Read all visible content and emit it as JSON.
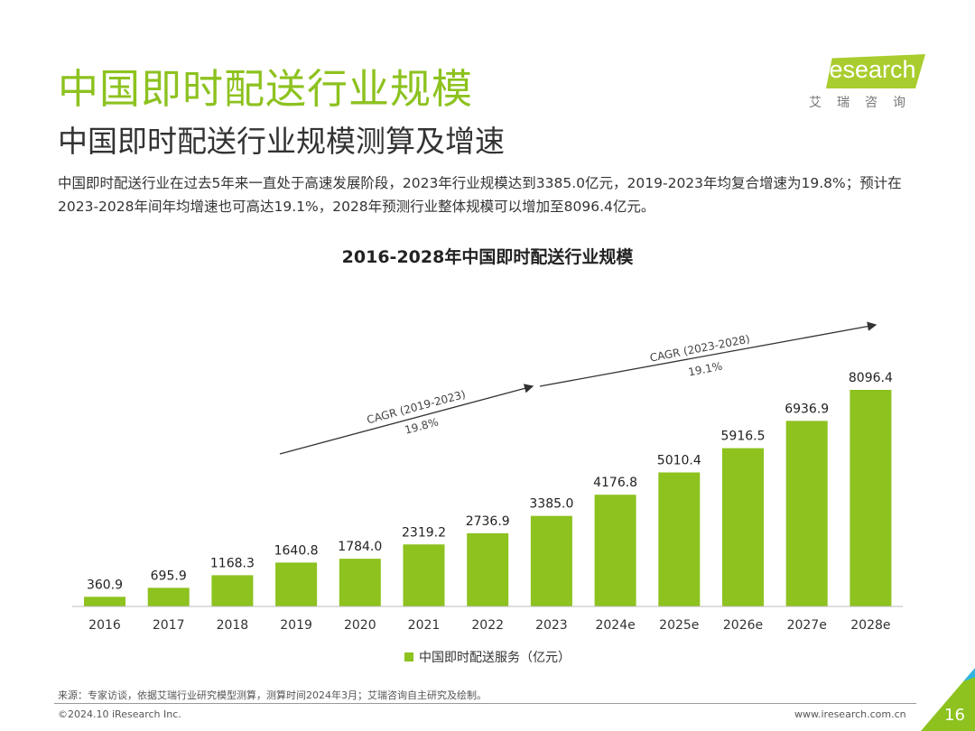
{
  "header": {
    "title": "中国即时配送行业规模",
    "subtitle": "中国即时配送行业规模测算及增速",
    "description": "中国即时配送行业在过去5年来一直处于高速发展阶段，2023年行业规模达到3385.0亿元，2019-2023年均复合增速为19.8%；预计在2023-2028年间年均增速也可高达19.1%，2028年预测行业整体规模可以增加至8096.4亿元。"
  },
  "logo": {
    "text": "iResearch",
    "cn": "艾瑞咨询"
  },
  "chart_data": {
    "type": "bar",
    "title": "2016-2028年中国即时配送行业规模",
    "categories": [
      "2016",
      "2017",
      "2018",
      "2019",
      "2020",
      "2021",
      "2022",
      "2023",
      "2024e",
      "2025e",
      "2026e",
      "2027e",
      "2028e"
    ],
    "series": [
      {
        "name": "中国即时配送服务（亿元）",
        "values": [
          360.9,
          695.9,
          1168.3,
          1640.8,
          1784.0,
          2319.2,
          2736.9,
          3385.0,
          4176.8,
          5010.4,
          5916.5,
          6936.9,
          8096.4
        ],
        "labels": [
          "360.9",
          "695.9",
          "1168.3",
          "1640.8",
          "1784.0",
          "2319.2",
          "2736.9",
          "3385.0",
          "4176.8",
          "5010.4",
          "5916.5",
          "6936.9",
          "8096.4"
        ]
      }
    ],
    "color": "#8dc21f",
    "legend": "bottom",
    "grid": false,
    "annotations": [
      {
        "label": "CAGR (2019-2023)",
        "value": "19.8%"
      },
      {
        "label": "CAGR (2023-2028)",
        "value": "19.1%"
      }
    ]
  },
  "footer": {
    "source": "来源：专家访谈，依据艾瑞行业研究模型测算，测算时间2024年3月；艾瑞咨询自主研究及绘制。",
    "copyright": "©2024.10 iResearch Inc.",
    "url": "www.iresearch.com.cn",
    "page": "16"
  }
}
